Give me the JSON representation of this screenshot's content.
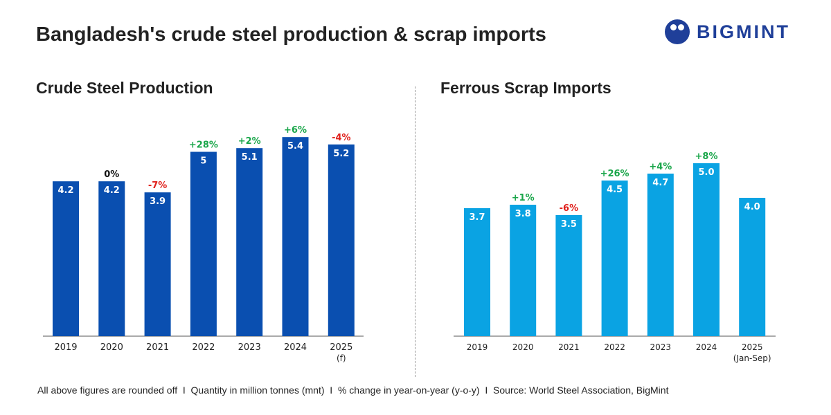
{
  "title": "Bangladesh's crude steel production & scrap imports",
  "logo": "BIGMINT",
  "footer": "All above figures are rounded off  I  Quantity in million tonnes (mnt)  I  % change in year-on-year (y-o-y)  I  Source: World Steel Association, BigMint",
  "colors": {
    "steel": "#0a4fb0",
    "scrap": "#0aa3e3",
    "pos": "#1aa64a",
    "neg": "#e0201b",
    "zero": "#111111"
  },
  "chart_data": [
    {
      "type": "bar",
      "title": "Crude Steel Production",
      "categories": [
        "2019",
        "2020",
        "2021",
        "2022",
        "2023",
        "2024",
        "2025"
      ],
      "category_notes": [
        "",
        "",
        "",
        "",
        "",
        "",
        "(f)"
      ],
      "values": [
        4.2,
        4.2,
        3.9,
        5,
        5.1,
        5.4,
        5.2
      ],
      "value_labels": [
        "4.2",
        "4.2",
        "3.9",
        "5",
        "5.1",
        "5.4",
        "5.2"
      ],
      "changes": [
        "",
        "0%",
        "-7%",
        "+28%",
        "+2%",
        "+6%",
        "-4%"
      ],
      "ylim": [
        0,
        6.5
      ]
    },
    {
      "type": "bar",
      "title": "Ferrous Scrap Imports",
      "categories": [
        "2019",
        "2020",
        "2021",
        "2022",
        "2023",
        "2024",
        "2025"
      ],
      "category_notes": [
        "",
        "",
        "",
        "",
        "",
        "",
        "(Jan-Sep)"
      ],
      "values": [
        3.7,
        3.8,
        3.5,
        4.5,
        4.7,
        5.0,
        4.0
      ],
      "value_labels": [
        "3.7",
        "3.8",
        "3.5",
        "4.5",
        "4.7",
        "5.0",
        "4.0"
      ],
      "changes": [
        "",
        "+1%",
        "-6%",
        "+26%",
        "+4%",
        "+8%",
        ""
      ],
      "ylim": [
        0,
        6.5
      ]
    }
  ]
}
